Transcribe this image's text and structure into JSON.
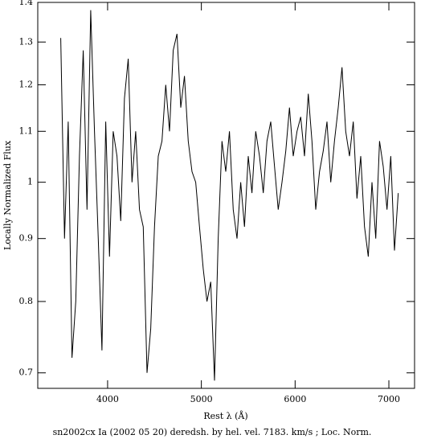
{
  "chart_data": {
    "type": "line",
    "title": "sn2002cx Ia (2002 05 20) deredsh. by hel. vel.  7183. km/s ;  Loc. Norm.",
    "xlabel": "Rest λ (Å)",
    "ylabel": "Locally Normalized Flux",
    "log_y": true,
    "xlim": [
      3255,
      7274
    ],
    "xticks": [
      4000,
      5000,
      6000,
      7000
    ],
    "ylim": [
      0.68,
      1.4
    ],
    "yticks": [
      0.7,
      0.8,
      0.9,
      1,
      1.1,
      1.2,
      1.3,
      1.4
    ],
    "color": "#000000",
    "x": [
      3500,
      3540,
      3580,
      3620,
      3660,
      3700,
      3740,
      3780,
      3820,
      3860,
      3900,
      3940,
      3980,
      4020,
      4060,
      4100,
      4140,
      4180,
      4220,
      4260,
      4300,
      4340,
      4380,
      4420,
      4460,
      4500,
      4540,
      4580,
      4620,
      4660,
      4700,
      4740,
      4780,
      4820,
      4860,
      4900,
      4940,
      4980,
      5020,
      5060,
      5100,
      5140,
      5180,
      5220,
      5260,
      5300,
      5340,
      5380,
      5420,
      5460,
      5500,
      5540,
      5580,
      5620,
      5660,
      5700,
      5740,
      5780,
      5820,
      5860,
      5900,
      5940,
      5980,
      6020,
      6060,
      6100,
      6140,
      6180,
      6220,
      6260,
      6300,
      6340,
      6380,
      6420,
      6460,
      6500,
      6540,
      6580,
      6620,
      6660,
      6700,
      6740,
      6780,
      6820,
      6860,
      6900,
      6940,
      6980,
      7020,
      7060,
      7100
    ],
    "values": [
      1.31,
      0.9,
      1.12,
      0.72,
      0.8,
      1.05,
      1.28,
      0.95,
      1.38,
      1.1,
      0.9,
      0.73,
      1.12,
      0.87,
      1.1,
      1.05,
      0.93,
      1.17,
      1.26,
      1.0,
      1.1,
      0.95,
      0.92,
      0.7,
      0.76,
      0.92,
      1.05,
      1.08,
      1.2,
      1.1,
      1.28,
      1.32,
      1.15,
      1.22,
      1.08,
      1.02,
      1.0,
      0.92,
      0.85,
      0.8,
      0.83,
      0.69,
      0.9,
      1.08,
      1.02,
      1.1,
      0.95,
      0.9,
      1.0,
      0.92,
      1.05,
      0.98,
      1.1,
      1.05,
      0.98,
      1.08,
      1.12,
      1.03,
      0.95,
      1.0,
      1.06,
      1.15,
      1.05,
      1.1,
      1.13,
      1.05,
      1.18,
      1.08,
      0.95,
      1.02,
      1.06,
      1.12,
      1.0,
      1.08,
      1.15,
      1.24,
      1.1,
      1.05,
      1.12,
      0.97,
      1.05,
      0.92,
      0.87,
      1.0,
      0.9,
      1.08,
      1.03,
      0.95,
      1.05,
      0.88,
      0.98
    ]
  }
}
